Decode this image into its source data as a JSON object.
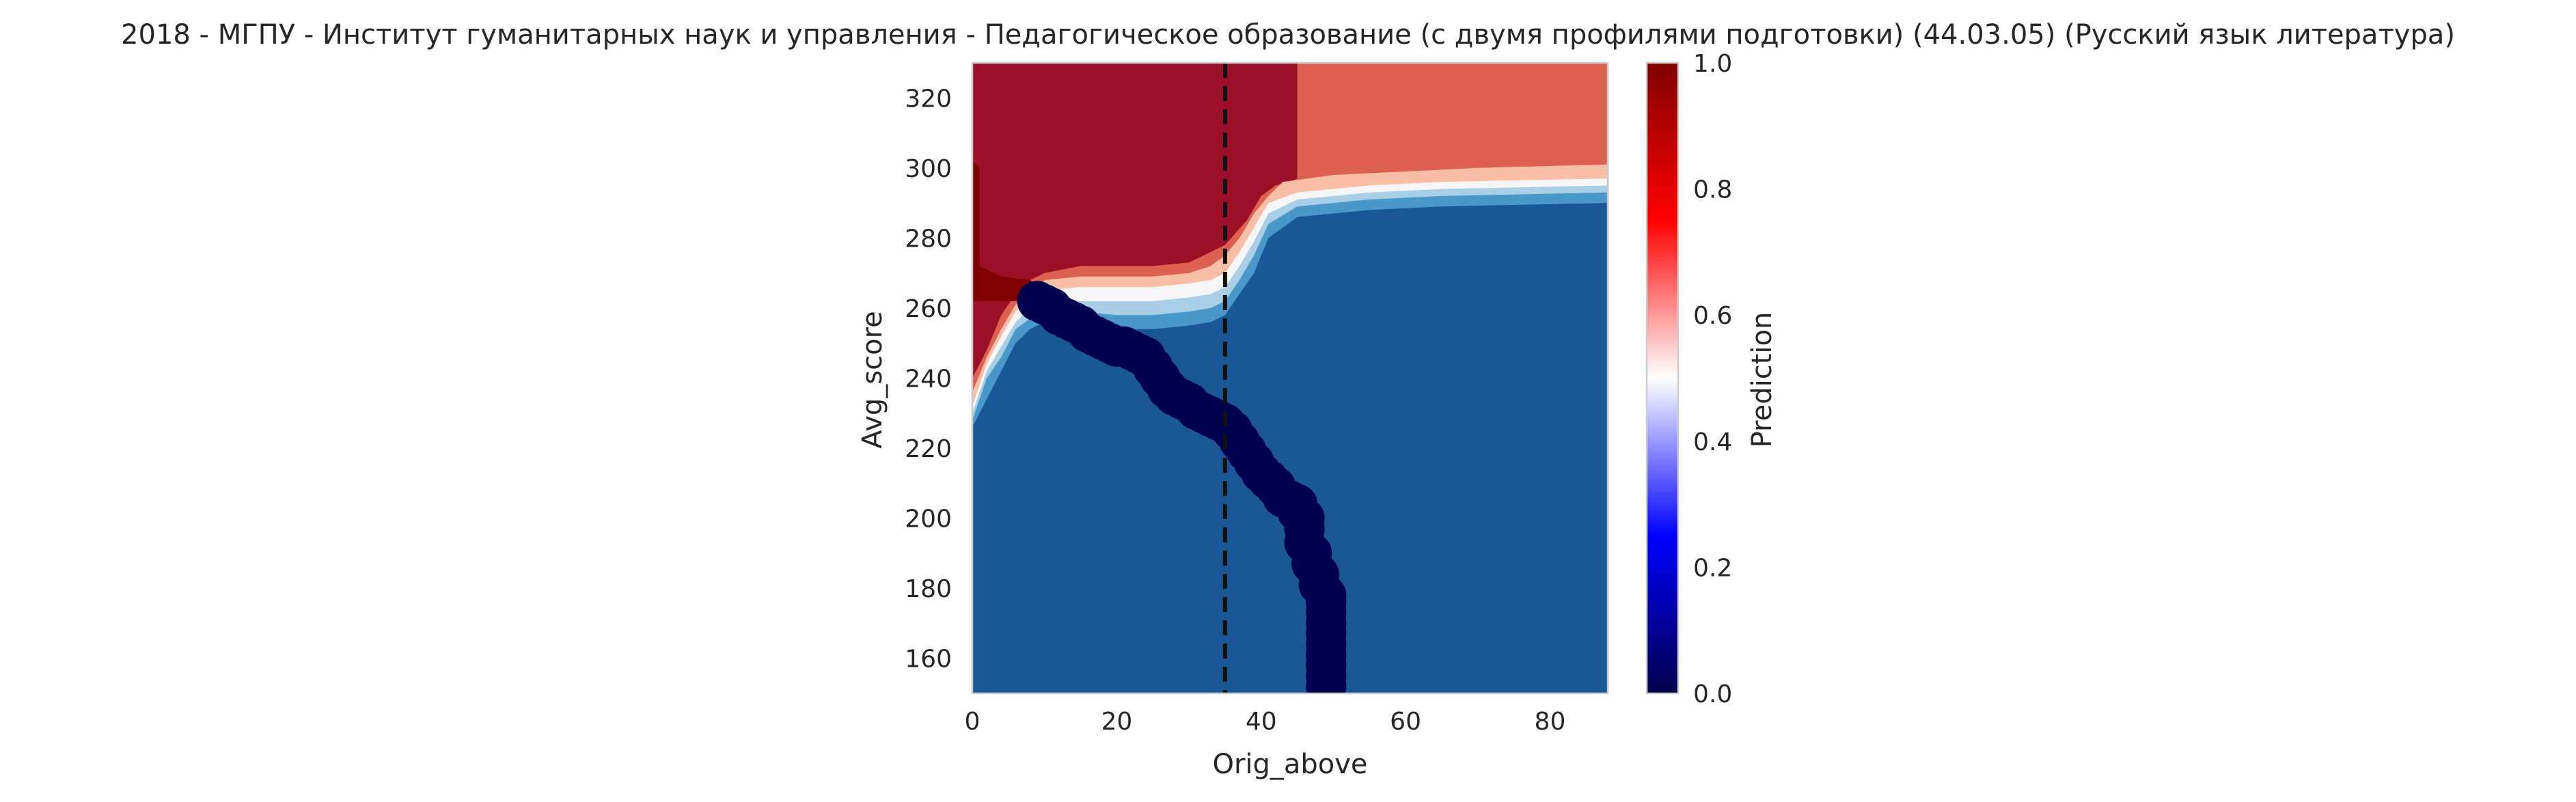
{
  "chart_data": {
    "type": "heatmap",
    "title": "2018 - МГПУ - Институт гуманитарных наук и управления - Педагогическое образование (с двумя профилями подготовки) (44.03.05) (Русский язык литература)",
    "xlabel": "Orig_above",
    "ylabel": "Avg_score",
    "xlim": [
      0,
      88
    ],
    "ylim": [
      150,
      330
    ],
    "x_ticks": [
      0,
      20,
      40,
      60,
      80
    ],
    "y_ticks": [
      160,
      180,
      200,
      220,
      240,
      260,
      280,
      300,
      320
    ],
    "colorbar": {
      "label": "Prediction",
      "range": [
        0,
        1
      ],
      "ticks": [
        "0.0",
        "0.2",
        "0.4",
        "0.6",
        "0.8",
        "1.0"
      ],
      "colormap": "seismic",
      "colors": [
        "#00004c",
        "#0000ff",
        "#ffffff",
        "#ff0000",
        "#800000"
      ]
    },
    "contour_levels": [
      {
        "level": 0.95,
        "color": "#9b1026"
      },
      {
        "level": 0.85,
        "color": "#dc6150"
      },
      {
        "level": 0.75,
        "color": "#f8bfa6"
      },
      {
        "level": 0.65,
        "color": "#f7f6f6"
      },
      {
        "level": 0.45,
        "color": "#a8cfe5"
      },
      {
        "level": 0.25,
        "color": "#4a97c9"
      },
      {
        "level": 0.05,
        "color": "#1a5796"
      }
    ],
    "vertical_line": {
      "x": 35,
      "style": "dashed",
      "color": "#111111"
    },
    "contour_boundaries": [
      {
        "level": 0.95,
        "points": [
          [
            0,
            240
          ],
          [
            2,
            248
          ],
          [
            4,
            258
          ],
          [
            6,
            264
          ],
          [
            8,
            268
          ],
          [
            10,
            270
          ],
          [
            15,
            272
          ],
          [
            20,
            272
          ],
          [
            25,
            272
          ],
          [
            30,
            273
          ],
          [
            33,
            276
          ],
          [
            35,
            278
          ],
          [
            38,
            285
          ],
          [
            40,
            292
          ],
          [
            42,
            295
          ],
          [
            44,
            296
          ],
          [
            45,
            297
          ],
          [
            45,
            330
          ]
        ]
      },
      {
        "level": 0.85,
        "points": [
          [
            0,
            236
          ],
          [
            2,
            246
          ],
          [
            4,
            254
          ],
          [
            6,
            261
          ],
          [
            8,
            265
          ],
          [
            10,
            268
          ],
          [
            15,
            269
          ],
          [
            20,
            269
          ],
          [
            25,
            269
          ],
          [
            30,
            270
          ],
          [
            33,
            272
          ],
          [
            35,
            275
          ],
          [
            37,
            280
          ],
          [
            39,
            287
          ],
          [
            41,
            292
          ],
          [
            43,
            296
          ],
          [
            50,
            298
          ],
          [
            60,
            299
          ],
          [
            70,
            300
          ],
          [
            88,
            301
          ]
        ]
      },
      {
        "level": 0.75,
        "points": [
          [
            0,
            232
          ],
          [
            2,
            244
          ],
          [
            4,
            252
          ],
          [
            6,
            259
          ],
          [
            8,
            262
          ],
          [
            10,
            265
          ],
          [
            15,
            266
          ],
          [
            20,
            266
          ],
          [
            25,
            266
          ],
          [
            30,
            267
          ],
          [
            33,
            268
          ],
          [
            35,
            270
          ],
          [
            37,
            276
          ],
          [
            39,
            283
          ],
          [
            41,
            290
          ],
          [
            45,
            293
          ],
          [
            55,
            295
          ],
          [
            65,
            296
          ],
          [
            88,
            297
          ]
        ]
      },
      {
        "level": 0.65,
        "points": [
          [
            0,
            230
          ],
          [
            2,
            242
          ],
          [
            4,
            249
          ],
          [
            6,
            256
          ],
          [
            8,
            260
          ],
          [
            10,
            262
          ],
          [
            15,
            262
          ],
          [
            20,
            262
          ],
          [
            25,
            262
          ],
          [
            30,
            263
          ],
          [
            33,
            264
          ],
          [
            35,
            266
          ],
          [
            37,
            272
          ],
          [
            39,
            279
          ],
          [
            41,
            287
          ],
          [
            45,
            291
          ],
          [
            55,
            293
          ],
          [
            65,
            294
          ],
          [
            88,
            295
          ]
        ]
      },
      {
        "level": 0.45,
        "points": [
          [
            0,
            228
          ],
          [
            2,
            240
          ],
          [
            4,
            246
          ],
          [
            6,
            254
          ],
          [
            8,
            257
          ],
          [
            10,
            259
          ],
          [
            15,
            259
          ],
          [
            20,
            258
          ],
          [
            25,
            258
          ],
          [
            30,
            259
          ],
          [
            33,
            260
          ],
          [
            35,
            262
          ],
          [
            37,
            268
          ],
          [
            39,
            275
          ],
          [
            41,
            284
          ],
          [
            45,
            289
          ],
          [
            55,
            291
          ],
          [
            65,
            292
          ],
          [
            88,
            293
          ]
        ]
      },
      {
        "level": 0.25,
        "points": [
          [
            0,
            226
          ],
          [
            2,
            234
          ],
          [
            4,
            242
          ],
          [
            6,
            250
          ],
          [
            8,
            254
          ],
          [
            10,
            256
          ],
          [
            15,
            255
          ],
          [
            20,
            254
          ],
          [
            25,
            254
          ],
          [
            30,
            255
          ],
          [
            33,
            256
          ],
          [
            35,
            258
          ],
          [
            37,
            264
          ],
          [
            39,
            270
          ],
          [
            41,
            280
          ],
          [
            45,
            286
          ],
          [
            55,
            288
          ],
          [
            65,
            289
          ],
          [
            88,
            290
          ]
        ]
      }
    ],
    "bright_region": {
      "points": [
        [
          0,
          262
        ],
        [
          4,
          262
        ],
        [
          8,
          262
        ],
        [
          10,
          265
        ],
        [
          8,
          268
        ],
        [
          4,
          269
        ],
        [
          1,
          272
        ],
        [
          1,
          300
        ],
        [
          0,
          302
        ]
      ]
    },
    "scatter": {
      "color": "#000050",
      "size_units": 2.8,
      "points": [
        [
          9,
          262
        ],
        [
          10,
          261
        ],
        [
          11,
          260
        ],
        [
          12,
          258
        ],
        [
          13,
          257
        ],
        [
          14,
          256
        ],
        [
          15,
          255
        ],
        [
          16,
          253
        ],
        [
          17,
          252
        ],
        [
          18,
          251
        ],
        [
          19,
          250
        ],
        [
          20,
          249
        ],
        [
          21,
          249
        ],
        [
          22,
          248
        ],
        [
          23,
          247
        ],
        [
          24,
          246
        ],
        [
          25,
          243
        ],
        [
          26,
          240
        ],
        [
          27,
          237
        ],
        [
          28,
          235
        ],
        [
          29,
          234
        ],
        [
          30,
          233
        ],
        [
          31,
          231
        ],
        [
          32,
          230
        ],
        [
          33,
          229
        ],
        [
          34,
          228
        ],
        [
          35,
          227
        ],
        [
          36,
          225
        ],
        [
          37,
          222
        ],
        [
          38,
          219
        ],
        [
          39,
          216
        ],
        [
          40,
          213
        ],
        [
          41,
          211
        ],
        [
          42,
          209
        ],
        [
          43,
          206
        ],
        [
          44,
          205
        ],
        [
          45,
          204
        ],
        [
          45,
          202
        ],
        [
          46,
          200
        ],
        [
          46,
          197
        ],
        [
          46,
          193
        ],
        [
          47,
          190
        ],
        [
          47,
          187
        ],
        [
          48,
          184
        ],
        [
          48,
          181
        ],
        [
          49,
          178
        ],
        [
          49,
          176
        ],
        [
          49,
          173
        ],
        [
          49,
          170
        ],
        [
          49,
          167
        ],
        [
          49,
          164
        ],
        [
          49,
          161
        ],
        [
          49,
          158
        ],
        [
          49,
          155
        ],
        [
          49,
          152
        ]
      ]
    }
  }
}
